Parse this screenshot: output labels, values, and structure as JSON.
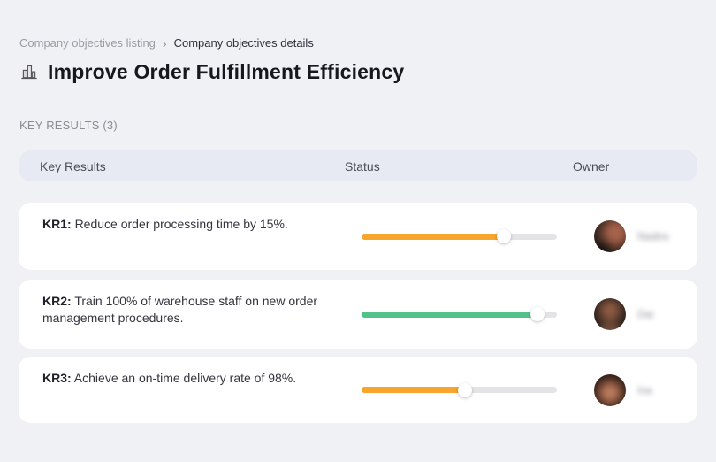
{
  "breadcrumb": {
    "parent": "Company objectives listing",
    "separator": "›",
    "current": "Company objectives details"
  },
  "page": {
    "title": "Improve Order Fulfillment Efficiency",
    "title_icon": "buildings-icon",
    "section_label": "KEY RESULTS (3)"
  },
  "table": {
    "columns": {
      "key_results": "Key Results",
      "status": "Status",
      "owner": "Owner"
    },
    "rows": [
      {
        "kr_label": "KR1:",
        "kr_text": "Reduce order processing time by 15%.",
        "progress_percent": 73,
        "bar_color": "#F7A52C",
        "owner_name": "Nadira"
      },
      {
        "kr_label": "KR2:",
        "kr_text": "Train 100% of warehouse staff on new order management procedures.",
        "progress_percent": 90,
        "bar_color": "#53C289",
        "owner_name": "Dai"
      },
      {
        "kr_label": "KR3:",
        "kr_text": "Achieve an on-time delivery rate of 98%.",
        "progress_percent": 53,
        "bar_color": "#F7A52C",
        "owner_name": "Ina"
      }
    ]
  },
  "colors": {
    "background": "#f0f1f4",
    "header_row_bg": "#e7eaf3",
    "card_bg": "#ffffff",
    "progress_track": "#e4e4e6",
    "status_orange": "#F7A52C",
    "status_green": "#53C289"
  }
}
